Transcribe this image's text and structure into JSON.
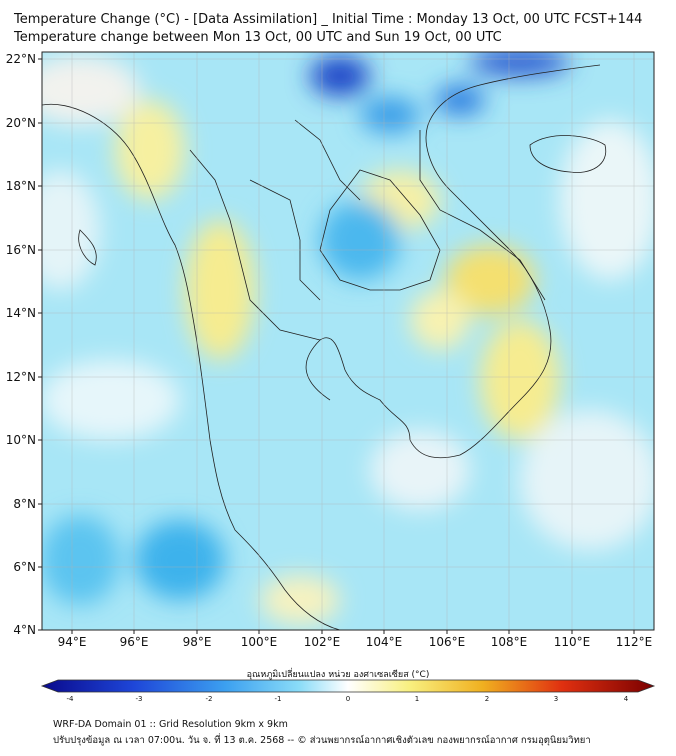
{
  "title_line1": "Temperature Change (°C) - [Data Assimilation] _ Initial Time : Monday 13 Oct, 00 UTC FCST+144",
  "title_line2": "Temperature change between Mon 13 Oct, 00 UTC and Sun 19 Oct, 00 UTC",
  "lat_labels": [
    "22°N",
    "20°N",
    "18°N",
    "16°N",
    "14°N",
    "12°N",
    "10°N",
    "8°N",
    "6°N",
    "4°N"
  ],
  "lon_labels": [
    "94°E",
    "96°E",
    "98°E",
    "100°E",
    "102°E",
    "104°E",
    "106°E",
    "108°E",
    "110°E",
    "112°E"
  ],
  "colorbar": {
    "label": "อุณหภูมิเปลี่ยนแปลง หน่วย องศาเซลเซียส (°C)",
    "ticks": [
      "-4",
      "-3",
      "-2",
      "-1",
      "0",
      "1",
      "2",
      "3",
      "4"
    ],
    "colors": {
      "cold_dark": "#0a0a8c",
      "cold": "#1e6ee8",
      "cool": "#3cc8f0",
      "neutral": "#ffffff",
      "warm_light": "#f8f080",
      "warm": "#f0a020",
      "hot": "#e03010",
      "hot_dark": "#7a0000"
    }
  },
  "footer_line1": "WRF-DA Domain 01 :: Grid Resolution 9km x 9km",
  "footer_line2": "ปรับปรุงข้อมูล ณ เวลา 07:00น. วัน จ. ที่ 13 ต.ค. 2568 -- © ส่วนพยากรณ์อากาศเชิงตัวเลข กองพยากรณ์อากาศ กรมอุตุนิยมวิทยา"
}
